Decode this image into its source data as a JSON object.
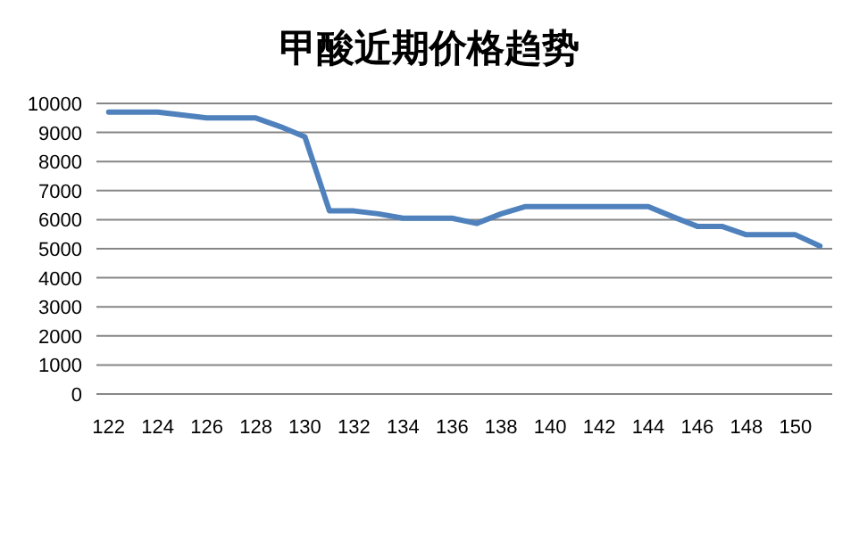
{
  "chart_data": {
    "type": "line",
    "title": "甲酸近期价格趋势",
    "categories": [
      "122",
      null,
      "124",
      null,
      "126",
      null,
      "128",
      null,
      "130",
      null,
      "132",
      null,
      "134",
      null,
      "136",
      null,
      "138",
      null,
      "140",
      null,
      "142",
      null,
      "144",
      null,
      "146",
      null,
      "148",
      null,
      "150",
      null
    ],
    "series": [
      {
        "color": "#4f81bd",
        "values": [
          9700,
          9700,
          9700,
          9600,
          9500,
          9500,
          9500,
          9200,
          8850,
          6300,
          6300,
          6200,
          6050,
          6050,
          6050,
          5870,
          6200,
          6450,
          6450,
          6450,
          6450,
          6450,
          6450,
          6100,
          5770,
          5770,
          5480,
          5480,
          5480,
          5090
        ]
      }
    ],
    "ylim": [
      0,
      10000
    ],
    "yticks": [
      0,
      1000,
      2000,
      3000,
      4000,
      5000,
      6000,
      7000,
      8000,
      9000,
      10000
    ],
    "grid": "y",
    "marker": "none",
    "line_style": "solid"
  }
}
